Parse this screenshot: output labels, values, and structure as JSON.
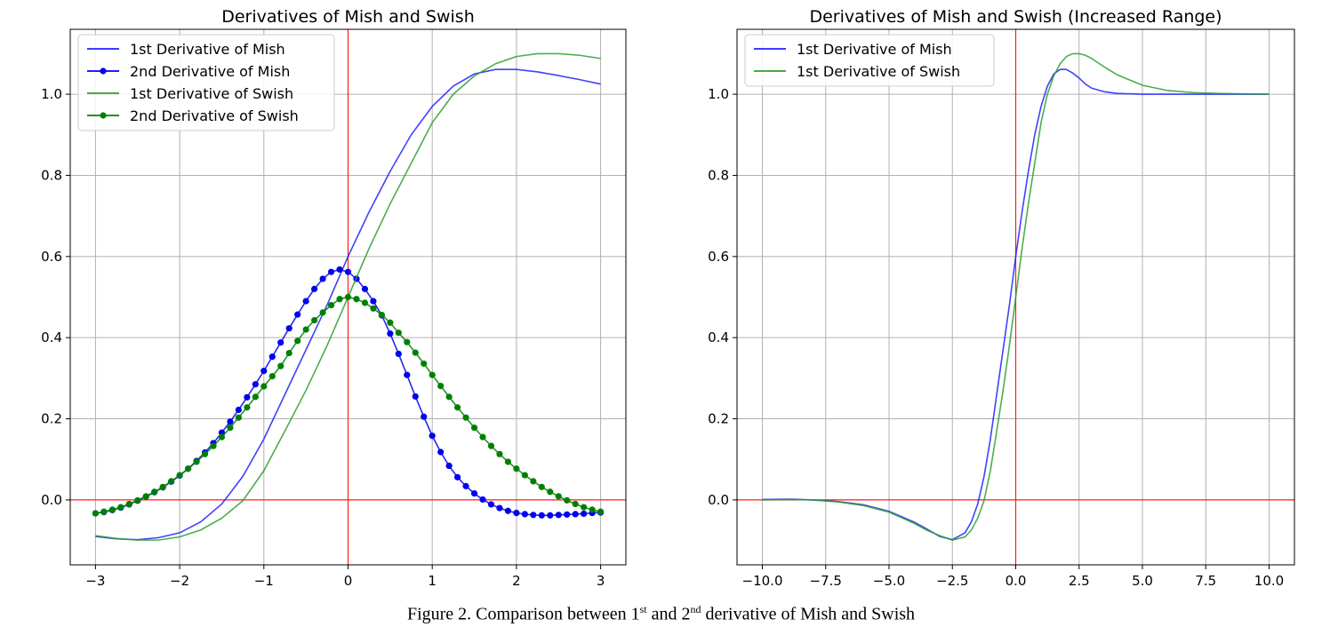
{
  "chart_data": [
    {
      "type": "line",
      "title": "Derivatives of Mish and Swish",
      "xlim": [
        -3.3,
        3.3
      ],
      "ylim": [
        -0.16,
        1.16
      ],
      "xticks": [
        -3,
        -2,
        -1,
        0,
        1,
        2,
        3
      ],
      "xtick_labels": [
        "−3",
        "−2",
        "−1",
        "0",
        "1",
        "2",
        "3"
      ],
      "yticks": [
        0.0,
        0.2,
        0.4,
        0.6,
        0.8,
        1.0
      ],
      "ytick_labels": [
        "0.0",
        "0.2",
        "0.4",
        "0.6",
        "0.8",
        "1.0"
      ],
      "grid": true,
      "legend_position": "top-left",
      "reference_lines": {
        "x": 0,
        "y": 0,
        "color": "#ff2020"
      },
      "series": [
        {
          "name": "1st Derivative of Mish",
          "color": "#2020ff",
          "marker": "none",
          "x": [
            -3.0,
            -2.75,
            -2.5,
            -2.25,
            -2.0,
            -1.75,
            -1.5,
            -1.25,
            -1.0,
            -0.75,
            -0.5,
            -0.25,
            0.0,
            0.25,
            0.5,
            0.75,
            1.0,
            1.25,
            1.5,
            1.75,
            2.0,
            2.25,
            2.5,
            2.75,
            3.0
          ],
          "y": [
            -0.09,
            -0.096,
            -0.098,
            -0.093,
            -0.081,
            -0.054,
            -0.01,
            0.058,
            0.15,
            0.26,
            0.37,
            0.48,
            0.6,
            0.71,
            0.81,
            0.9,
            0.97,
            1.02,
            1.05,
            1.061,
            1.061,
            1.055,
            1.046,
            1.036,
            1.025
          ]
        },
        {
          "name": "2nd Derivative of Mish",
          "color": "#0000ee",
          "marker": "circle",
          "x": [
            -3.0,
            -2.9,
            -2.8,
            -2.7,
            -2.6,
            -2.5,
            -2.4,
            -2.3,
            -2.2,
            -2.1,
            -2.0,
            -1.9,
            -1.8,
            -1.7,
            -1.6,
            -1.5,
            -1.4,
            -1.3,
            -1.2,
            -1.1,
            -1.0,
            -0.9,
            -0.8,
            -0.7,
            -0.6,
            -0.5,
            -0.4,
            -0.3,
            -0.2,
            -0.1,
            0.0,
            0.1,
            0.2,
            0.3,
            0.4,
            0.5,
            0.6,
            0.7,
            0.8,
            0.9,
            1.0,
            1.1,
            1.2,
            1.3,
            1.4,
            1.5,
            1.6,
            1.7,
            1.8,
            1.9,
            2.0,
            2.1,
            2.2,
            2.3,
            2.4,
            2.5,
            2.6,
            2.7,
            2.8,
            2.9,
            3.0
          ],
          "y": [
            -0.033,
            -0.03,
            -0.025,
            -0.019,
            -0.011,
            -0.002,
            0.008,
            0.019,
            0.031,
            0.045,
            0.06,
            0.077,
            0.096,
            0.117,
            0.14,
            0.166,
            0.193,
            0.222,
            0.253,
            0.285,
            0.318,
            0.353,
            0.388,
            0.423,
            0.457,
            0.49,
            0.52,
            0.545,
            0.562,
            0.568,
            0.562,
            0.545,
            0.52,
            0.49,
            0.455,
            0.41,
            0.36,
            0.308,
            0.255,
            0.205,
            0.158,
            0.118,
            0.084,
            0.056,
            0.034,
            0.016,
            0.001,
            -0.011,
            -0.02,
            -0.027,
            -0.032,
            -0.035,
            -0.037,
            -0.038,
            -0.038,
            -0.037,
            -0.036,
            -0.035,
            -0.034,
            -0.032,
            -0.031
          ]
        },
        {
          "name": "1st Derivative of Swish",
          "color": "#2ca02c",
          "marker": "none",
          "x": [
            -3.0,
            -2.75,
            -2.5,
            -2.25,
            -2.0,
            -1.75,
            -1.5,
            -1.25,
            -1.0,
            -0.75,
            -0.5,
            -0.25,
            0.0,
            0.25,
            0.5,
            0.75,
            1.0,
            1.25,
            1.5,
            1.75,
            2.0,
            2.25,
            2.5,
            2.75,
            3.0
          ],
          "y": [
            -0.088,
            -0.095,
            -0.099,
            -0.099,
            -0.091,
            -0.074,
            -0.045,
            -0.002,
            0.072,
            0.17,
            0.27,
            0.38,
            0.5,
            0.62,
            0.73,
            0.83,
            0.93,
            1.0,
            1.045,
            1.075,
            1.093,
            1.1,
            1.1,
            1.096,
            1.088
          ]
        },
        {
          "name": "2nd Derivative of Swish",
          "color": "#008000",
          "marker": "circle",
          "x": [
            -3.0,
            -2.9,
            -2.8,
            -2.7,
            -2.6,
            -2.5,
            -2.4,
            -2.3,
            -2.2,
            -2.1,
            -2.0,
            -1.9,
            -1.8,
            -1.7,
            -1.6,
            -1.5,
            -1.4,
            -1.3,
            -1.2,
            -1.1,
            -1.0,
            -0.9,
            -0.8,
            -0.7,
            -0.6,
            -0.5,
            -0.4,
            -0.3,
            -0.2,
            -0.1,
            0.0,
            0.1,
            0.2,
            0.3,
            0.4,
            0.5,
            0.6,
            0.7,
            0.8,
            0.9,
            1.0,
            1.1,
            1.2,
            1.3,
            1.4,
            1.5,
            1.6,
            1.7,
            1.8,
            1.9,
            2.0,
            2.1,
            2.2,
            2.3,
            2.4,
            2.5,
            2.6,
            2.7,
            2.8,
            2.9,
            3.0
          ],
          "y": [
            -0.033,
            -0.029,
            -0.024,
            -0.018,
            -0.01,
            -0.001,
            0.009,
            0.02,
            0.032,
            0.046,
            0.061,
            0.077,
            0.094,
            0.113,
            0.133,
            0.155,
            0.178,
            0.203,
            0.228,
            0.254,
            0.28,
            0.305,
            0.33,
            0.362,
            0.392,
            0.42,
            0.443,
            0.462,
            0.48,
            0.495,
            0.5,
            0.495,
            0.486,
            0.472,
            0.456,
            0.437,
            0.412,
            0.389,
            0.363,
            0.336,
            0.308,
            0.281,
            0.254,
            0.228,
            0.203,
            0.178,
            0.155,
            0.133,
            0.113,
            0.094,
            0.077,
            0.061,
            0.046,
            0.032,
            0.02,
            0.009,
            -0.001,
            -0.01,
            -0.018,
            -0.024,
            -0.029
          ]
        }
      ]
    },
    {
      "type": "line",
      "title": "Derivatives of Mish and Swish (Increased Range)",
      "xlim": [
        -11.0,
        11.0
      ],
      "ylim": [
        -0.16,
        1.16
      ],
      "xticks": [
        -10.0,
        -7.5,
        -5.0,
        -2.5,
        0.0,
        2.5,
        5.0,
        7.5,
        10.0
      ],
      "xtick_labels": [
        "−10.0",
        "−7.5",
        "−5.0",
        "−2.5",
        "0.0",
        "2.5",
        "5.0",
        "7.5",
        "10.0"
      ],
      "yticks": [
        0.0,
        0.2,
        0.4,
        0.6,
        0.8,
        1.0
      ],
      "ytick_labels": [
        "0.0",
        "0.2",
        "0.4",
        "0.6",
        "0.8",
        "1.0"
      ],
      "grid": true,
      "legend_position": "top-left",
      "reference_lines": {
        "x": 0,
        "y": 0,
        "color": "#ff2020"
      },
      "series": [
        {
          "name": "1st Derivative of Mish",
          "color": "#2020ff",
          "marker": "none",
          "x": [
            -10,
            -9,
            -8,
            -7,
            -6,
            -5,
            -4,
            -3.5,
            -3,
            -2.5,
            -2,
            -1.75,
            -1.5,
            -1.25,
            -1,
            -0.75,
            -0.5,
            -0.25,
            0,
            0.25,
            0.5,
            0.75,
            1,
            1.25,
            1.5,
            1.75,
            2,
            2.25,
            2.5,
            2.75,
            3,
            3.5,
            4,
            5,
            6,
            7,
            8,
            9,
            10
          ],
          "y": [
            0.001,
            0.002,
            0.0,
            -0.004,
            -0.012,
            -0.028,
            -0.055,
            -0.072,
            -0.09,
            -0.098,
            -0.081,
            -0.054,
            -0.01,
            0.058,
            0.15,
            0.26,
            0.37,
            0.48,
            0.6,
            0.71,
            0.81,
            0.9,
            0.97,
            1.02,
            1.05,
            1.061,
            1.061,
            1.052,
            1.04,
            1.025,
            1.015,
            1.006,
            1.002,
            1.0,
            1.0,
            1.0,
            1.0,
            1.0,
            1.0
          ]
        },
        {
          "name": "1st Derivative of Swish",
          "color": "#2ca02c",
          "marker": "none",
          "x": [
            -10,
            -9,
            -8,
            -7,
            -6,
            -5,
            -4,
            -3.5,
            -3,
            -2.5,
            -2,
            -1.75,
            -1.5,
            -1.25,
            -1,
            -0.75,
            -0.5,
            -0.25,
            0,
            0.25,
            0.5,
            0.75,
            1,
            1.25,
            1.5,
            1.75,
            2,
            2.25,
            2.5,
            2.75,
            3,
            3.5,
            4,
            5,
            6,
            7,
            8,
            9,
            10
          ],
          "y": [
            0.0,
            0.001,
            0.0,
            -0.005,
            -0.014,
            -0.03,
            -0.058,
            -0.075,
            -0.088,
            -0.099,
            -0.091,
            -0.074,
            -0.045,
            -0.002,
            0.072,
            0.17,
            0.27,
            0.38,
            0.5,
            0.62,
            0.73,
            0.83,
            0.93,
            1.0,
            1.045,
            1.075,
            1.093,
            1.1,
            1.1,
            1.096,
            1.088,
            1.067,
            1.048,
            1.022,
            1.009,
            1.004,
            1.002,
            1.001,
            1.0
          ]
        }
      ]
    }
  ],
  "caption": {
    "prefix": "Figure 2. Comparison between 1",
    "sup1": "st",
    "middle": " and 2",
    "sup2": "nd",
    "suffix": " derivative of Mish and Swish"
  }
}
